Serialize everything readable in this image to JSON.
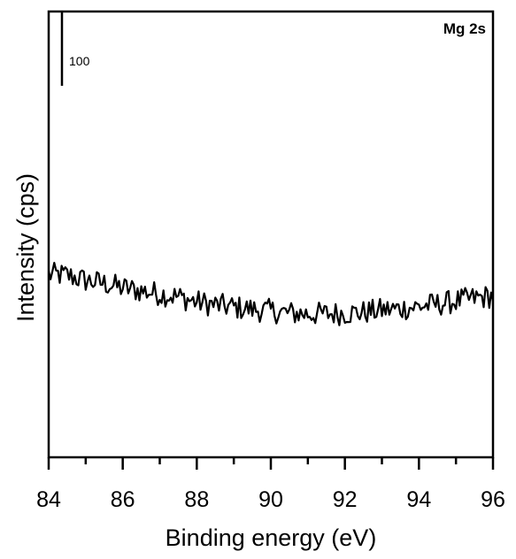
{
  "chart_data": {
    "type": "line",
    "title": "",
    "panel_label": "Mg 2s",
    "xlabel": "Binding energy (eV)",
    "ylabel": "Intensity (cps)",
    "xlim": [
      84,
      96
    ],
    "ylim": [
      0,
      600
    ],
    "x_major_ticks": [
      84,
      86,
      88,
      90,
      92,
      94,
      96
    ],
    "x_tick_labels": [
      "84",
      "86",
      "88",
      "90",
      "92",
      "94",
      "96"
    ],
    "x_minor_ticks": [
      85,
      87,
      89,
      91,
      93,
      95
    ],
    "scale_bar": {
      "label": "100",
      "value": 100,
      "start": 500
    },
    "grid": false,
    "legend": "none",
    "series": [
      {
        "x": [
          84.0,
          84.5,
          85.0,
          85.5,
          86.0,
          86.5,
          87.0,
          87.5,
          88.0,
          88.5,
          89.0,
          89.5,
          90.0,
          90.5,
          91.0,
          91.5,
          92.0,
          92.5,
          93.0,
          93.5,
          94.0,
          94.5,
          95.0,
          95.5,
          96.0
        ],
        "y": [
          246,
          245,
          238,
          234,
          228,
          224,
          220,
          216,
          209,
          205,
          202,
          199,
          197,
          194,
          193,
          193,
          194,
          195,
          198,
          200,
          203,
          206,
          210,
          214,
          217
        ],
        "noise": 9
      }
    ],
    "color": "#000000"
  }
}
